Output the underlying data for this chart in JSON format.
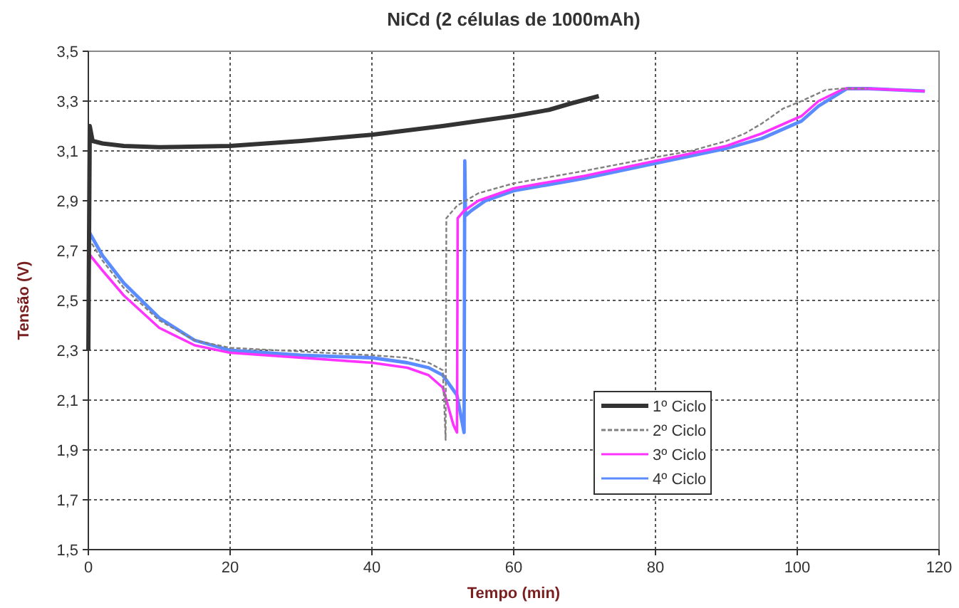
{
  "chart_data": {
    "type": "line",
    "title": "NiCd (2 células de 1000mAh)",
    "xlabel": "Tempo (min)",
    "ylabel": "Tensão (V)",
    "xlim": [
      0,
      120
    ],
    "xticks": [
      0,
      20,
      40,
      60,
      80,
      100,
      120
    ],
    "ylim": [
      1.5,
      3.5
    ],
    "yticks": [
      {
        "value": 1.5,
        "label": "1,5"
      },
      {
        "value": 1.7,
        "label": "1,7"
      },
      {
        "value": 1.9,
        "label": "1,9"
      },
      {
        "value": 2.1,
        "label": "2,1"
      },
      {
        "value": 2.3,
        "label": "2,3"
      },
      {
        "value": 2.5,
        "label": "2,5"
      },
      {
        "value": 2.7,
        "label": "2,7"
      },
      {
        "value": 2.9,
        "label": "2,9"
      },
      {
        "value": 3.1,
        "label": "3,1"
      },
      {
        "value": 3.3,
        "label": "3,3"
      },
      {
        "value": 3.5,
        "label": "3,5"
      }
    ],
    "grid": true,
    "legend": "bottom right",
    "marker": "none",
    "series": [
      {
        "name": "1º Ciclo",
        "color": "#333333",
        "line_style": "solid",
        "x": [
          0,
          0.2,
          0.6,
          2,
          5,
          10,
          20,
          30,
          40,
          50,
          60,
          65,
          68,
          72
        ],
        "values": [
          2.3,
          3.2,
          3.14,
          3.13,
          3.12,
          3.115,
          3.12,
          3.14,
          3.165,
          3.2,
          3.24,
          3.265,
          3.29,
          3.32
        ]
      },
      {
        "name": "2º Ciclo",
        "color": "#808080",
        "line_style": "dashed",
        "x": [
          0,
          2,
          5,
          10,
          15,
          20,
          30,
          40,
          45,
          48,
          50,
          50.4,
          50.5,
          52,
          55,
          60,
          70,
          80,
          85,
          90,
          92.6,
          95,
          98,
          100.6,
          104,
          106,
          110
        ],
        "values": [
          2.75,
          2.66,
          2.55,
          2.42,
          2.34,
          2.31,
          2.295,
          2.28,
          2.27,
          2.25,
          2.22,
          1.94,
          2.83,
          2.88,
          2.93,
          2.97,
          3.02,
          3.075,
          3.1,
          3.14,
          3.17,
          3.21,
          3.27,
          3.3,
          3.345,
          3.35,
          3.35
        ]
      },
      {
        "name": "3º Ciclo",
        "color": "#ff33ff",
        "line_style": "solid",
        "x": [
          0,
          2,
          5,
          10,
          15,
          20,
          30,
          40,
          45,
          48,
          50,
          51.5,
          52,
          52.1,
          53,
          55,
          60,
          70,
          80,
          90,
          95,
          100.6,
          103,
          106.6,
          110,
          118
        ],
        "values": [
          2.69,
          2.62,
          2.52,
          2.39,
          2.32,
          2.29,
          2.27,
          2.25,
          2.23,
          2.2,
          2.15,
          2.0,
          1.97,
          2.83,
          2.86,
          2.9,
          2.95,
          3.0,
          3.06,
          3.12,
          3.17,
          3.24,
          3.3,
          3.35,
          3.35,
          3.34
        ]
      },
      {
        "name": "4º Ciclo",
        "color": "#5b8cff",
        "line_style": "solid",
        "x": [
          0,
          2,
          5,
          10,
          15,
          20,
          30,
          40,
          45,
          48,
          50,
          52,
          53,
          53.1,
          53.2,
          54,
          56,
          60,
          70,
          80,
          90,
          95,
          100.6,
          103,
          107,
          110,
          118
        ],
        "values": [
          2.78,
          2.68,
          2.57,
          2.43,
          2.34,
          2.3,
          2.28,
          2.27,
          2.25,
          2.23,
          2.2,
          2.12,
          1.97,
          3.06,
          2.84,
          2.86,
          2.9,
          2.94,
          2.99,
          3.05,
          3.11,
          3.15,
          3.22,
          3.28,
          3.35,
          3.35,
          3.34
        ]
      }
    ]
  }
}
